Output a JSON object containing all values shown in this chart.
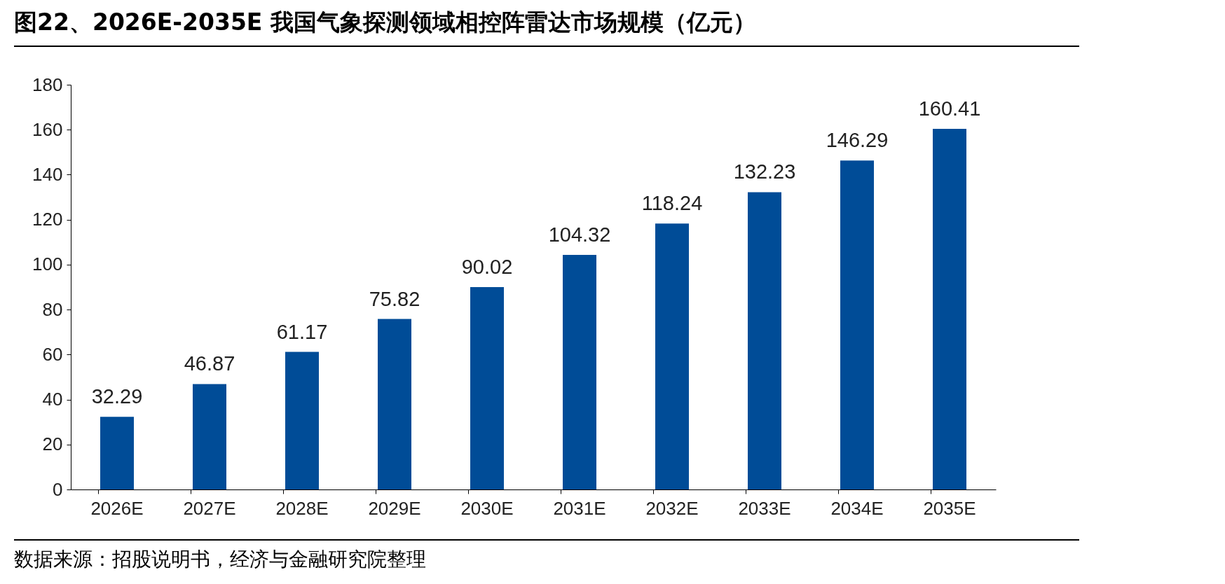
{
  "chart_data": {
    "type": "bar",
    "title": "图22、2026E-2035E 我国气象探测领域相控阵雷达市场规模（亿元）",
    "categories": [
      "2026E",
      "2027E",
      "2028E",
      "2029E",
      "2030E",
      "2031E",
      "2032E",
      "2033E",
      "2034E",
      "2035E"
    ],
    "values": [
      32.29,
      46.87,
      61.17,
      75.82,
      90.02,
      104.32,
      118.24,
      132.23,
      146.29,
      160.41
    ],
    "color": "#004c97",
    "ylim": [
      0,
      180
    ],
    "yticks": [
      0,
      20,
      40,
      60,
      80,
      100,
      120,
      140,
      160,
      180
    ],
    "grid": false,
    "data_labels": true,
    "annotations": [
      "数据来源：招股说明书，经济与金融研究院整理"
    ]
  }
}
